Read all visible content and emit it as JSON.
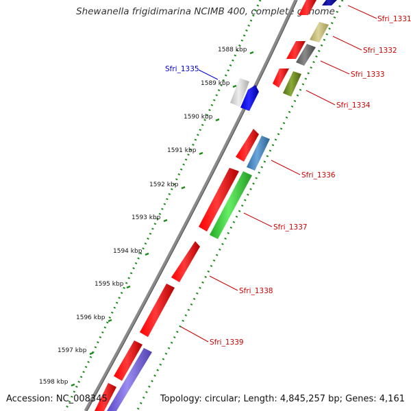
{
  "title": "Shewanella frigidimarina NCIMB 400, complete genome",
  "footer": {
    "accession": "Accession: NC_008345",
    "summary": "Topology: circular; Length: 4,845,257 bp; Genes: 4,161"
  },
  "ticks": [
    {
      "label": "1588 kbp",
      "kbp": 1588
    },
    {
      "label": "1589 kbp",
      "kbp": 1589
    },
    {
      "label": "1590 kbp",
      "kbp": 1590
    },
    {
      "label": "1591 kbp",
      "kbp": 1591
    },
    {
      "label": "1592 kbp",
      "kbp": 1592
    },
    {
      "label": "1593 kbp",
      "kbp": 1593
    },
    {
      "label": "1594 kbp",
      "kbp": 1594
    },
    {
      "label": "1595 kbp",
      "kbp": 1595
    },
    {
      "label": "1596 kbp",
      "kbp": 1596
    },
    {
      "label": "1597 kbp",
      "kbp": 1597
    },
    {
      "label": "1598 kbp",
      "kbp": 1598
    }
  ],
  "gene_labels": [
    {
      "name": "Sfri_1331",
      "color": "#cc0000"
    },
    {
      "name": "Sfri_1332",
      "color": "#cc0000"
    },
    {
      "name": "Sfri_1333",
      "color": "#cc0000"
    },
    {
      "name": "Sfri_1334",
      "color": "#cc0000"
    },
    {
      "name": "Sfri_1335",
      "color": "#0000cc"
    },
    {
      "name": "Sfri_1336",
      "color": "#cc0000"
    },
    {
      "name": "Sfri_1337",
      "color": "#cc0000"
    },
    {
      "name": "Sfri_1338",
      "color": "#cc0000"
    },
    {
      "name": "Sfri_1339",
      "color": "#cc0000"
    }
  ],
  "colors": {
    "cds": "#ff0000",
    "backbone": "#888888",
    "gc_dots": "#1a8a1a",
    "blue": "#0000ff",
    "steelblue": "#4a86c0",
    "green": "#33cc33",
    "olive": "#6b8e23",
    "khaki": "#c8c07a",
    "darkgray": "#666666",
    "lightgray": "#d0d0d0",
    "navy": "#000099",
    "purple": "#7766dd"
  }
}
